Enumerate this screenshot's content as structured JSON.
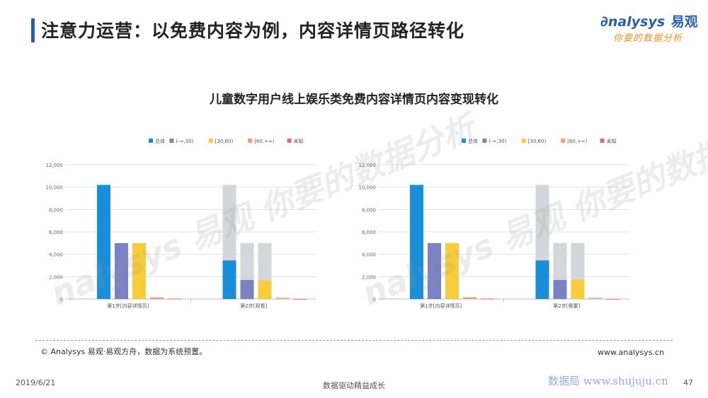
{
  "header": {
    "title": "注意力运营：以免费内容为例，内容详情页路径转化",
    "logo_brand": "nalysys",
    "logo_cn": "易观",
    "logo_slogan": "你要的数据分析"
  },
  "chart_heading": "儿童数字用户线上娱乐类免费内容详情页内容变现转化",
  "watermark": "nalysys 易观 你要的数据分析",
  "colors": {
    "total": "#1a8fd9",
    "s1": "#7a82c4",
    "s2": "#f7cd3a",
    "s3": "#e8a27a",
    "s4": "#e06f6f",
    "funnel_bg": "#d4d6d9"
  },
  "chart_data": [
    {
      "type": "bar",
      "legend": [
        "总体",
        "(-∞,30)",
        "[30,60)",
        "[60,+∞)",
        "未知"
      ],
      "categories": [
        "第1步[内容详情页]",
        "第2步[观看]"
      ],
      "series": [
        {
          "name": "总体",
          "values": [
            10200,
            3450
          ]
        },
        {
          "name": "(-∞,30)",
          "values": [
            5000,
            1700
          ]
        },
        {
          "name": "[30,60)",
          "values": [
            5000,
            1650
          ]
        },
        {
          "name": "[60,+∞)",
          "values": [
            150,
            50
          ]
        },
        {
          "name": "未知",
          "values": [
            40,
            15
          ]
        }
      ],
      "ylim": [
        0,
        12000
      ],
      "yticks": [
        "0",
        "2,000",
        "4,000",
        "6,000",
        "8,000",
        "10,000",
        "12,000"
      ],
      "grid": true,
      "legend_position": "top-right"
    },
    {
      "type": "bar",
      "legend": [
        "总体",
        "(-∞,30)",
        "[30,60)",
        "[60,+∞)",
        "未知"
      ],
      "categories": [
        "第1步[内容详情页]",
        "第2步[需要]"
      ],
      "series": [
        {
          "name": "总体",
          "values": [
            10200,
            3450
          ]
        },
        {
          "name": "(-∞,30)",
          "values": [
            5000,
            1700
          ]
        },
        {
          "name": "[30,60)",
          "values": [
            5000,
            1700
          ]
        },
        {
          "name": "[60,+∞)",
          "values": [
            150,
            60
          ]
        },
        {
          "name": "未知",
          "values": [
            40,
            15
          ]
        }
      ],
      "ylim": [
        0,
        12000
      ],
      "yticks": [
        "0",
        "2,000",
        "4,000",
        "6,000",
        "8,000",
        "10,000",
        "12,000"
      ],
      "grid": true,
      "legend_position": "top-right"
    }
  ],
  "footer": {
    "source": "© Analysys 易观·易观方舟，数据为系统预置。",
    "website": "www.analysys.cn",
    "date": "2019/6/21",
    "slogan": "数据驱动精益成长",
    "brand_url": "数据局 www.shujuju.cn",
    "page_number": "47"
  }
}
